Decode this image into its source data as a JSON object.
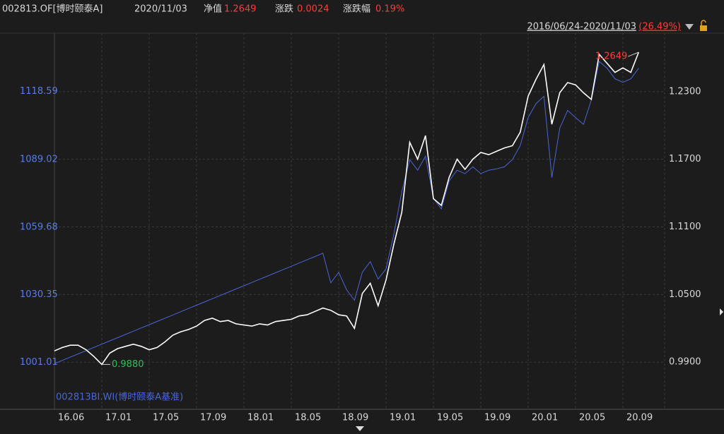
{
  "header": {
    "date": "2020/11/03",
    "nav_label": "净值",
    "nav": "1.2649",
    "change_label": "涨跌",
    "change": "0.0024",
    "pct_label": "涨跌幅",
    "pct": "0.19%",
    "range": "2016/06/24-2020/11/03",
    "range_change": "(26.49%)"
  },
  "chart_data": {
    "type": "line",
    "categories": [
      "16.06",
      null,
      null,
      null,
      null,
      null,
      "17.01",
      null,
      null,
      null,
      null,
      null,
      "17.05",
      null,
      null,
      null,
      null,
      null,
      "17.09",
      null,
      null,
      null,
      null,
      null,
      "18.01",
      null,
      null,
      null,
      null,
      null,
      "18.05",
      null,
      null,
      null,
      null,
      null,
      "18.09",
      null,
      null,
      null,
      null,
      null,
      "19.01",
      null,
      null,
      null,
      null,
      null,
      "19.05",
      null,
      null,
      null,
      null,
      null,
      "19.09",
      null,
      null,
      null,
      null,
      null,
      "20.01",
      null,
      null,
      null,
      null,
      null,
      "20.05",
      null,
      null,
      null,
      null,
      null,
      "20.09",
      null,
      null
    ],
    "series": [
      {
        "name": "002813.OF[博时颐泰A]",
        "color": "#ffffff",
        "axis": "y",
        "values": [
          1.0,
          1.003,
          1.005,
          1.005,
          1.001,
          0.995,
          0.988,
          0.998,
          1.002,
          1.004,
          1.006,
          1.004,
          1.001,
          1.003,
          1.008,
          1.014,
          1.017,
          1.019,
          1.022,
          1.027,
          1.029,
          1.026,
          1.027,
          1.024,
          1.023,
          1.022,
          1.024,
          1.023,
          1.026,
          1.027,
          1.028,
          1.031,
          1.032,
          1.035,
          1.038,
          1.036,
          1.032,
          1.031,
          1.02,
          1.051,
          1.06,
          1.04,
          1.063,
          1.095,
          1.123,
          1.185,
          1.17,
          1.191,
          1.135,
          1.129,
          1.154,
          1.17,
          1.161,
          1.17,
          1.176,
          1.174,
          1.177,
          1.18,
          1.182,
          1.194,
          1.226,
          1.241,
          1.254,
          1.201,
          1.229,
          1.238,
          1.236,
          1.229,
          1.223,
          1.263,
          1.255,
          1.247,
          1.251,
          1.247,
          1.2649
        ],
        "value_labels": [
          null,
          null,
          null,
          null,
          null,
          null,
          "0.9880",
          null,
          null,
          null,
          null,
          null,
          null,
          null,
          null,
          null,
          null,
          null,
          null,
          null,
          null,
          null,
          null,
          null,
          null,
          null,
          null,
          null,
          null,
          null,
          null,
          null,
          null,
          null,
          null,
          null,
          null,
          null,
          null,
          null,
          null,
          null,
          null,
          null,
          null,
          null,
          null,
          null,
          null,
          null,
          null,
          null,
          null,
          null,
          null,
          null,
          null,
          null,
          null,
          null,
          null,
          null,
          null,
          null,
          null,
          null,
          null,
          null,
          null,
          null,
          null,
          null,
          null,
          null,
          "1.2649"
        ]
      },
      {
        "name": "002813BI.WI(博时颐泰A基准)",
        "color": "#4a66d8",
        "axis": "y2",
        "values": [
          1000.4,
          1001.81,
          1003.22,
          1004.63,
          1006.04,
          1007.45,
          1008.86,
          1010.27,
          1011.68,
          1013.09,
          1014.5,
          1015.91,
          1017.32,
          1018.73,
          1020.14,
          1021.55,
          1022.96,
          1024.37,
          1025.78,
          1027.19,
          1028.6,
          1030.01,
          1031.42,
          1032.83,
          1034.24,
          1035.65,
          1037.06,
          1038.47,
          1039.88,
          1041.29,
          1042.7,
          1044.11,
          1045.52,
          1046.93,
          1048.35,
          1035.5,
          1040.1,
          1032.5,
          1027.9,
          1040.1,
          1044.7,
          1037.1,
          1041.6,
          1056.9,
          1075.2,
          1089.0,
          1084.4,
          1090.5,
          1072.2,
          1067.6,
          1079.8,
          1084.4,
          1082.9,
          1085.9,
          1082.9,
          1084.4,
          1085.0,
          1085.9,
          1089.0,
          1095.1,
          1107.3,
          1113.4,
          1116.5,
          1081.3,
          1102.7,
          1110.4,
          1107.3,
          1104.3,
          1114.9,
          1131.7,
          1128.7,
          1124.1,
          1122.6,
          1124.1,
          1128.7
        ]
      }
    ],
    "ylim": [
      0.9482,
      1.2818
    ],
    "yticks": [
      {
        "value": 0.99,
        "label": "0.9900"
      },
      {
        "value": 1.05,
        "label": "1.0500"
      },
      {
        "value": 1.11,
        "label": "1.1100"
      },
      {
        "value": 1.17,
        "label": "1.1700"
      },
      {
        "value": 1.23,
        "label": "1.2300"
      }
    ],
    "y2lim": [
      980.55,
      1143.95
    ],
    "y2ticks": [
      1001.01,
      1030.35,
      1059.68,
      1089.02,
      1118.59
    ],
    "y2_side": "left",
    "grid": true,
    "up_color": "#ff3b3b",
    "down_color": "#2ec05a"
  }
}
